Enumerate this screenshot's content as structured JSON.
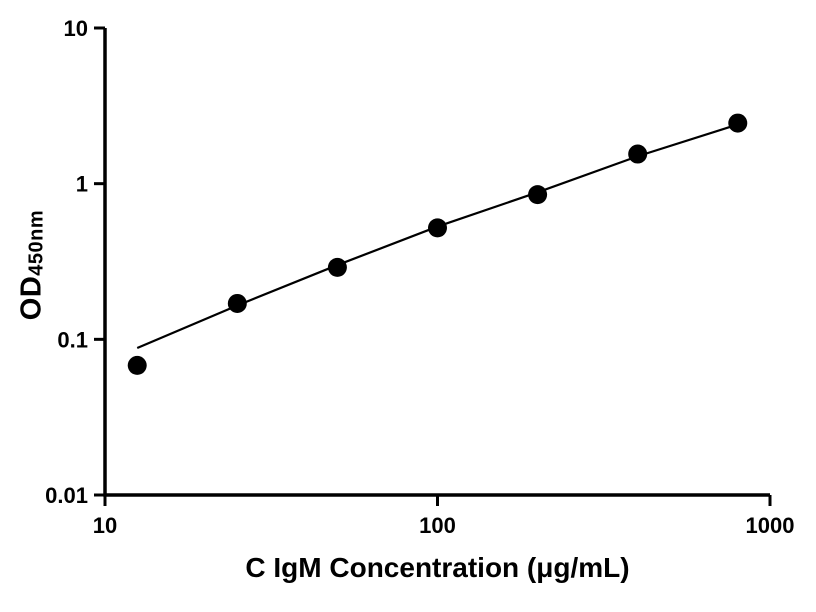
{
  "chart_data": {
    "type": "scatter",
    "title": "",
    "xlabel": "C IgM Concentration (μg/mL)",
    "ylabel_main": "OD",
    "ylabel_sub": "450nm",
    "x_scale": "log",
    "y_scale": "log",
    "xlim": [
      10,
      1000
    ],
    "ylim": [
      0.01,
      10
    ],
    "grid": false,
    "legend": "none",
    "x_ticks": [
      10,
      100,
      1000
    ],
    "x_tick_labels": [
      "10",
      "100",
      "1000"
    ],
    "y_ticks": [
      0.01,
      0.1,
      1,
      10
    ],
    "y_tick_labels": [
      "0.01",
      "0.1",
      "1",
      "10"
    ],
    "series": [
      {
        "name": "standard-curve-points",
        "marker": "circle",
        "color": "#000000",
        "x": [
          12.5,
          25,
          50,
          100,
          200,
          400,
          800
        ],
        "y": [
          0.068,
          0.17,
          0.29,
          0.52,
          0.85,
          1.55,
          2.45
        ]
      }
    ],
    "fit_line": {
      "name": "fit-line",
      "color": "#000000",
      "x": [
        12.5,
        25,
        50,
        100,
        200,
        400,
        800
      ],
      "y": [
        0.088,
        0.165,
        0.3,
        0.53,
        0.88,
        1.5,
        2.4
      ]
    }
  }
}
